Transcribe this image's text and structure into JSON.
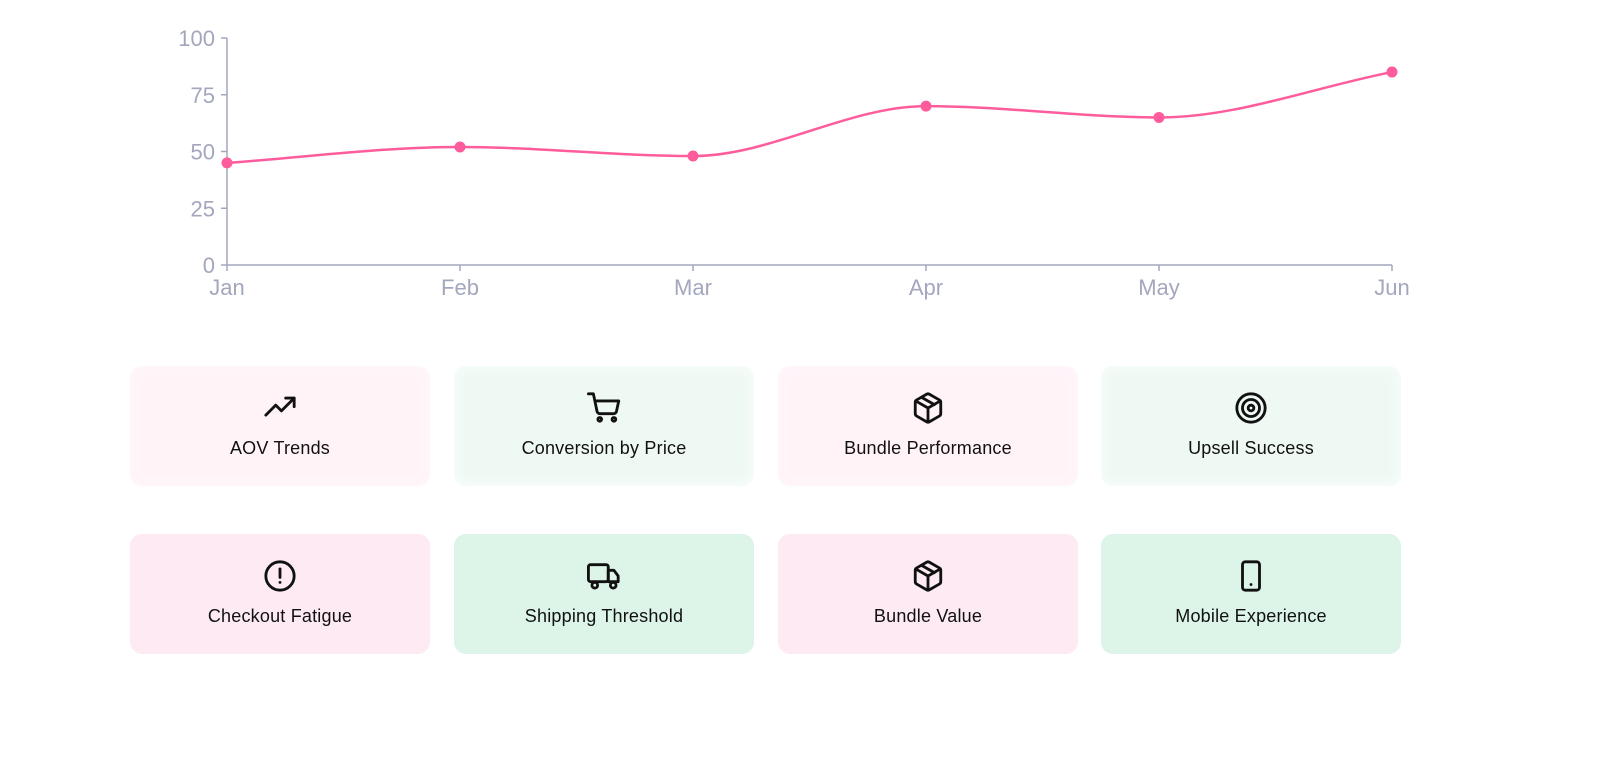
{
  "chart_data": {
    "type": "line",
    "categories": [
      "Jan",
      "Feb",
      "Mar",
      "Apr",
      "May",
      "Jun"
    ],
    "series": [
      {
        "values": [
          45,
          52,
          48,
          70,
          65,
          85
        ]
      }
    ],
    "yticks": [
      "0",
      "25",
      "50",
      "75",
      "100"
    ],
    "ylim": [
      0,
      100
    ],
    "grid": false,
    "line_color": "#ff5c9d",
    "axis_color": "#a3a7be"
  },
  "cards": [
    {
      "label": "AOV Trends",
      "icon": "trending-up-icon",
      "color": "pink"
    },
    {
      "label": "Conversion by Price",
      "icon": "shopping-cart-icon",
      "color": "green"
    },
    {
      "label": "Bundle Performance",
      "icon": "package-icon",
      "color": "pink"
    },
    {
      "label": "Upsell Success",
      "icon": "target-icon",
      "color": "green"
    },
    {
      "label": "Checkout Fatigue",
      "icon": "alert-circle-icon",
      "color": "pink"
    },
    {
      "label": "Shipping Threshold",
      "icon": "truck-icon",
      "color": "green"
    },
    {
      "label": "Bundle Value",
      "icon": "package-icon",
      "color": "pink"
    },
    {
      "label": "Mobile Experience",
      "icon": "tablet-icon",
      "color": "green"
    }
  ]
}
